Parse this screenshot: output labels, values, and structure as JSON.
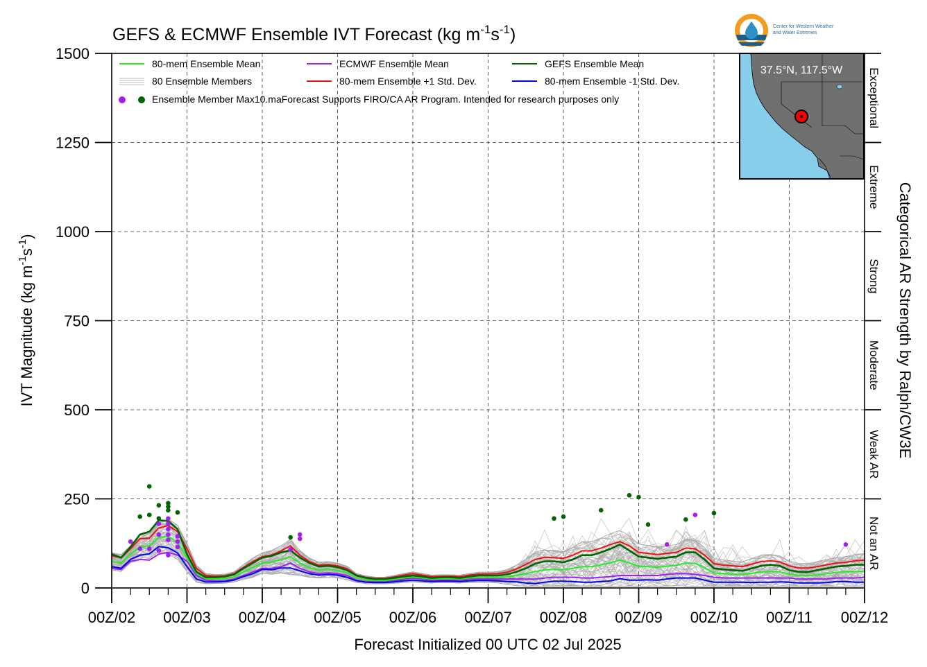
{
  "title": "GEFS & ECMWF Ensemble IVT Forecast (kg m",
  "title_unit_a": "-1",
  "title_unit_b": "s",
  "title_unit_c": "-1",
  "title_close": ")",
  "ylabel": "IVT Magnitude (kg m",
  "ylabel_a": "-1",
  "ylabel_b": "s",
  "ylabel_c": "-1",
  "ylabel_close": ")",
  "xlabel": "Forecast Initialized 00 UTC 02 Jul 2025",
  "right_label": "Categorical AR Strength by Ralph/CW3E",
  "logo": {
    "line1": "Center for Western Weather",
    "line2": "and Water Extremes"
  },
  "inset": {
    "location_label": "37.5°N, 117.5°W",
    "ocean_color": "#87ceeb",
    "land_color": "#707070",
    "marker_color": "#ff0000"
  },
  "legend": {
    "items": [
      {
        "label": "80-mem Ensemble Mean",
        "color": "#22ee22"
      },
      {
        "label": "ECMWF Ensemble Mean",
        "color": "#a020f0"
      },
      {
        "label": "GEFS Ensemble Mean",
        "color": "#006400"
      },
      {
        "label": "80 Ensemble Members",
        "color": "#aaaaaa"
      },
      {
        "label": "80-mem Ensemble +1 Std. Dev.",
        "color": "#ee1111"
      },
      {
        "label": "80-mem Ensemble -1 Std. Dev.",
        "color": "#0000ee"
      }
    ],
    "max_label": "Ensemble Member Max",
    "disclaimer": "10.maForecast Supports FIRO/CA AR Program. Intended for research purposes only"
  },
  "categories": [
    {
      "label": "Exceptional",
      "range": [
        1250,
        1500
      ]
    },
    {
      "label": "Extreme",
      "range": [
        1000,
        1250
      ]
    },
    {
      "label": "Strong",
      "range": [
        750,
        1000
      ]
    },
    {
      "label": "Moderate",
      "range": [
        500,
        750
      ]
    },
    {
      "label": "Weak AR",
      "range": [
        250,
        500
      ]
    },
    {
      "label": "Not an AR",
      "range": [
        0,
        250
      ]
    }
  ],
  "chart_data": {
    "type": "line",
    "title": "GEFS & ECMWF Ensemble IVT Forecast (kg m-1s-1)",
    "xlabel": "Forecast Initialized 00 UTC 02 Jul 2025",
    "ylabel": "IVT Magnitude (kg m-1s-1)",
    "ylim": [
      0,
      1500
    ],
    "xlim": [
      0,
      240
    ],
    "x_unit": "hours after 00Z/02",
    "yticks": [
      0,
      250,
      500,
      750,
      1000,
      1250,
      1500
    ],
    "ytick_labels": [
      "0",
      "250",
      "500",
      "750",
      "1000",
      "1250",
      "1500"
    ],
    "xtick_labels": [
      "00Z/02",
      "00Z/03",
      "00Z/04",
      "00Z/05",
      "00Z/06",
      "00Z/07",
      "00Z/08",
      "00Z/09",
      "00Z/10",
      "00Z/11",
      "00Z/12"
    ],
    "grid": true,
    "legend_position": "top-left",
    "x": [
      0,
      3,
      6,
      9,
      12,
      15,
      18,
      21,
      24,
      27,
      30,
      33,
      36,
      39,
      42,
      45,
      48,
      51,
      54,
      57,
      60,
      63,
      66,
      69,
      72,
      75,
      78,
      81,
      84,
      87,
      90,
      93,
      96,
      99,
      102,
      105,
      108,
      111,
      114,
      117,
      120,
      123,
      126,
      129,
      132,
      135,
      138,
      141,
      144,
      147,
      150,
      153,
      156,
      159,
      162,
      165,
      168,
      171,
      174,
      177,
      180,
      183,
      186,
      189,
      192,
      195,
      198,
      201,
      204,
      207,
      210,
      213,
      216,
      219,
      222,
      225,
      228,
      231,
      234,
      237,
      240
    ],
    "series": [
      {
        "name": "GEFS Ensemble Mean",
        "color": "#006400",
        "values": [
          95,
          85,
          115,
          150,
          158,
          190,
          188,
          165,
          95,
          45,
          30,
          30,
          32,
          38,
          55,
          70,
          85,
          90,
          100,
          105,
          85,
          70,
          60,
          62,
          58,
          50,
          35,
          28,
          25,
          25,
          28,
          32,
          35,
          32,
          28,
          30,
          30,
          28,
          32,
          35,
          35,
          35,
          38,
          45,
          55,
          68,
          75,
          75,
          72,
          80,
          92,
          92,
          100,
          110,
          122,
          105,
          88,
          85,
          82,
          85,
          88,
          100,
          100,
          80,
          55,
          52,
          50,
          48,
          55,
          62,
          65,
          62,
          50,
          45,
          45,
          50,
          55,
          60,
          62,
          65,
          65
        ]
      },
      {
        "name": "ECMWF Ensemble Mean",
        "color": "#a020f0",
        "values": [
          55,
          52,
          75,
          80,
          78,
          95,
          100,
          92,
          75,
          35,
          22,
          20,
          20,
          25,
          35,
          45,
          55,
          55,
          60,
          70,
          55,
          45,
          40,
          42,
          40,
          35,
          22,
          18,
          18,
          18,
          20,
          25,
          28,
          25,
          22,
          22,
          22,
          22,
          25,
          25,
          25,
          25,
          25,
          25,
          25,
          25,
          28,
          30,
          30,
          30,
          28,
          28,
          30,
          32,
          35,
          35,
          35,
          35,
          35,
          38,
          40,
          40,
          38,
          35,
          30,
          28,
          28,
          28,
          28,
          28,
          28,
          28,
          28,
          25,
          25,
          25,
          25,
          28,
          28,
          28,
          30
        ]
      },
      {
        "name": "80-mem Ensemble Mean",
        "color": "#22ee22",
        "values": [
          75,
          70,
          95,
          115,
          118,
          142,
          144,
          128,
          85,
          40,
          26,
          25,
          26,
          31,
          45,
          57,
          70,
          72,
          80,
          87,
          70,
          57,
          50,
          52,
          49,
          42,
          28,
          23,
          21,
          21,
          24,
          28,
          31,
          28,
          25,
          26,
          26,
          25,
          28,
          30,
          30,
          30,
          31,
          35,
          40,
          46,
          51,
          52,
          51,
          55,
          60,
          60,
          65,
          71,
          78,
          70,
          61,
          60,
          58,
          61,
          64,
          70,
          69,
          57,
          42,
          40,
          39,
          38,
          41,
          45,
          46,
          45,
          39,
          35,
          35,
          37,
          40,
          44,
          45,
          46,
          47
        ]
      },
      {
        "name": "80-mem Ensemble +1 Std. Dev.",
        "color": "#ee1111",
        "values": [
          90,
          85,
          110,
          138,
          140,
          168,
          175,
          158,
          110,
          55,
          35,
          33,
          34,
          40,
          58,
          74,
          88,
          93,
          104,
          118,
          92,
          74,
          64,
          66,
          62,
          54,
          36,
          30,
          27,
          27,
          31,
          36,
          40,
          36,
          32,
          33,
          33,
          32,
          36,
          39,
          39,
          40,
          44,
          53,
          66,
          80,
          86,
          85,
          83,
          92,
          104,
          104,
          112,
          122,
          130,
          118,
          100,
          97,
          94,
          97,
          100,
          112,
          110,
          92,
          68,
          64,
          62,
          60,
          67,
          74,
          76,
          73,
          62,
          56,
          56,
          60,
          65,
          70,
          72,
          76,
          78
        ]
      },
      {
        "name": "80-mem Ensemble -1 Std. Dev.",
        "color": "#0000ee",
        "values": [
          60,
          55,
          80,
          92,
          96,
          116,
          113,
          98,
          60,
          25,
          17,
          17,
          18,
          22,
          32,
          40,
          52,
          51,
          56,
          56,
          48,
          40,
          36,
          38,
          36,
          30,
          20,
          16,
          15,
          15,
          17,
          20,
          22,
          20,
          18,
          19,
          19,
          18,
          20,
          21,
          21,
          20,
          18,
          17,
          14,
          12,
          16,
          19,
          19,
          18,
          16,
          16,
          18,
          20,
          26,
          22,
          22,
          23,
          22,
          25,
          28,
          28,
          28,
          22,
          16,
          16,
          16,
          16,
          15,
          16,
          16,
          17,
          16,
          14,
          14,
          14,
          15,
          18,
          18,
          16,
          16
        ]
      }
    ],
    "ensemble_members": {
      "count": 80,
      "color": "#aaaaaa"
    },
    "member_max_points": [
      {
        "x": 6,
        "y": 130,
        "color": "#a020f0"
      },
      {
        "x": 9,
        "y": 200,
        "color": "#006400"
      },
      {
        "x": 9,
        "y": 110,
        "color": "#a020f0"
      },
      {
        "x": 12,
        "y": 205,
        "color": "#006400"
      },
      {
        "x": 12,
        "y": 285,
        "color": "#006400"
      },
      {
        "x": 12,
        "y": 110,
        "color": "#a020f0"
      },
      {
        "x": 15,
        "y": 232,
        "color": "#006400"
      },
      {
        "x": 15,
        "y": 195,
        "color": "#006400"
      },
      {
        "x": 15,
        "y": 180,
        "color": "#a020f0"
      },
      {
        "x": 15,
        "y": 150,
        "color": "#a020f0"
      },
      {
        "x": 15,
        "y": 105,
        "color": "#a020f0"
      },
      {
        "x": 18,
        "y": 238,
        "color": "#006400"
      },
      {
        "x": 18,
        "y": 228,
        "color": "#006400"
      },
      {
        "x": 18,
        "y": 218,
        "color": "#006400"
      },
      {
        "x": 18,
        "y": 195,
        "color": "#a020f0"
      },
      {
        "x": 18,
        "y": 180,
        "color": "#a020f0"
      },
      {
        "x": 18,
        "y": 165,
        "color": "#a020f0"
      },
      {
        "x": 18,
        "y": 150,
        "color": "#a020f0"
      },
      {
        "x": 18,
        "y": 135,
        "color": "#a020f0"
      },
      {
        "x": 18,
        "y": 92,
        "color": "#a020f0"
      },
      {
        "x": 21,
        "y": 212,
        "color": "#006400"
      },
      {
        "x": 21,
        "y": 145,
        "color": "#a020f0"
      },
      {
        "x": 21,
        "y": 130,
        "color": "#a020f0"
      },
      {
        "x": 21,
        "y": 115,
        "color": "#a020f0"
      },
      {
        "x": 57,
        "y": 142,
        "color": "#006400"
      },
      {
        "x": 57,
        "y": 108,
        "color": "#a020f0"
      },
      {
        "x": 60,
        "y": 150,
        "color": "#a020f0"
      },
      {
        "x": 60,
        "y": 138,
        "color": "#a020f0"
      },
      {
        "x": 141,
        "y": 195,
        "color": "#006400"
      },
      {
        "x": 144,
        "y": 200,
        "color": "#006400"
      },
      {
        "x": 156,
        "y": 218,
        "color": "#006400"
      },
      {
        "x": 165,
        "y": 260,
        "color": "#006400"
      },
      {
        "x": 168,
        "y": 255,
        "color": "#006400"
      },
      {
        "x": 171,
        "y": 178,
        "color": "#006400"
      },
      {
        "x": 177,
        "y": 122,
        "color": "#a020f0"
      },
      {
        "x": 183,
        "y": 192,
        "color": "#006400"
      },
      {
        "x": 186,
        "y": 205,
        "color": "#a020f0"
      },
      {
        "x": 192,
        "y": 210,
        "color": "#006400"
      },
      {
        "x": 234,
        "y": 122,
        "color": "#a020f0"
      }
    ]
  }
}
